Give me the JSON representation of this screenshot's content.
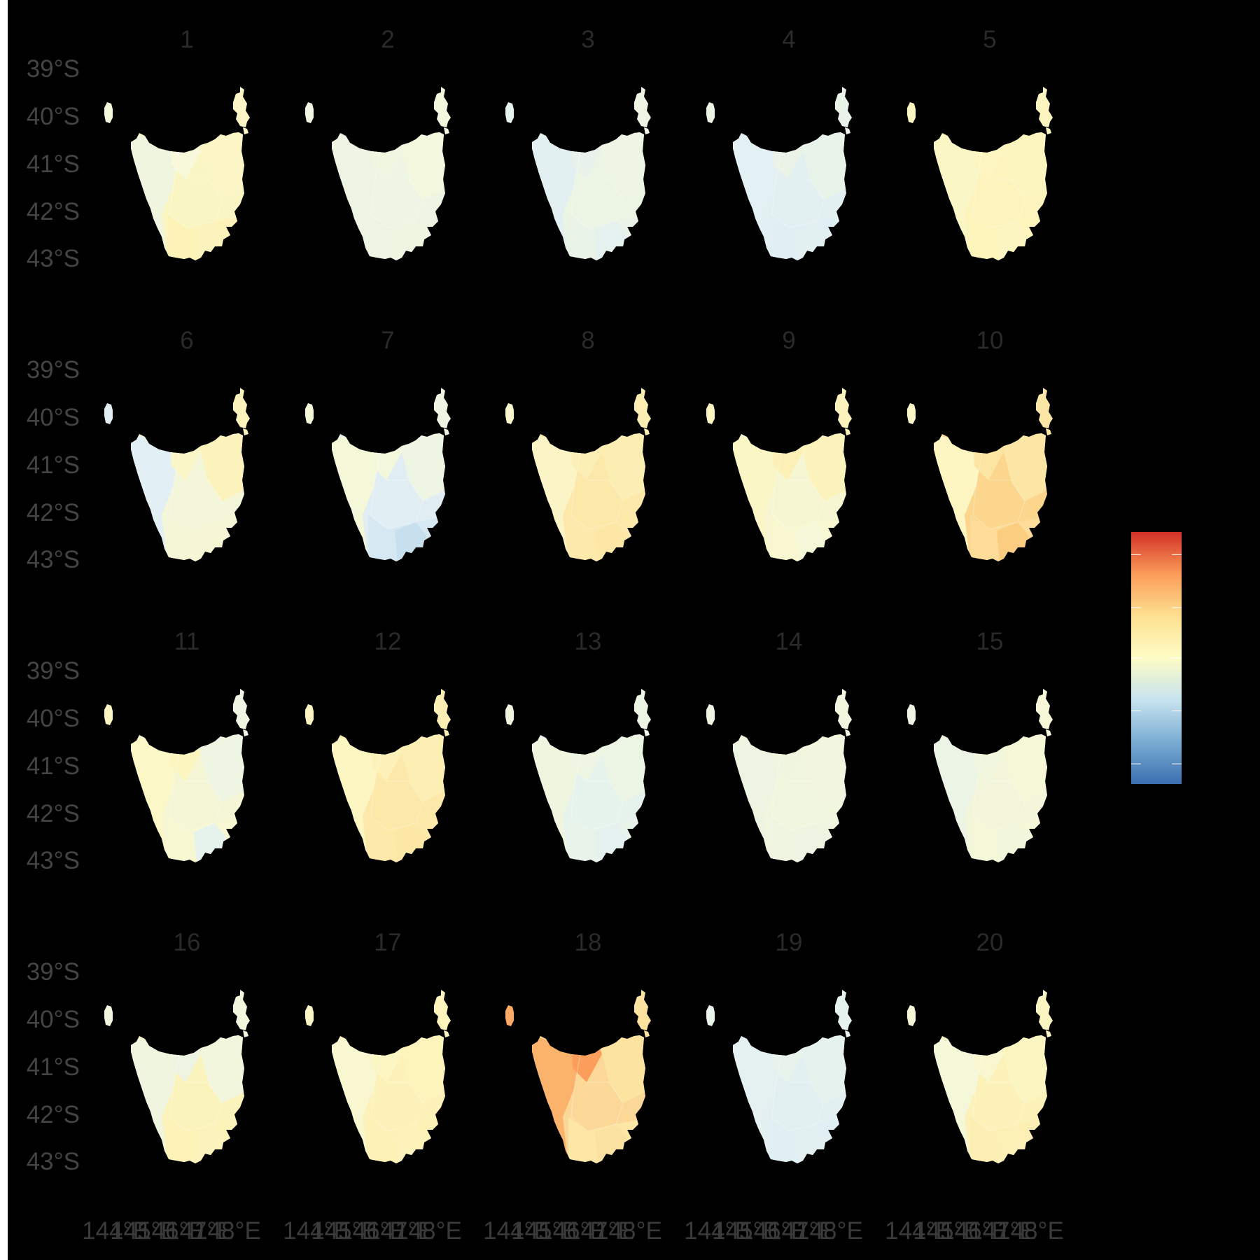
{
  "facets": [
    {
      "label": "1",
      "w": "#f0f5e0",
      "n": "#f8f9da",
      "c": "#faf6c4",
      "s": "#fdf2b8",
      "e": "#fcf6c6",
      "k": "#fbf2bc",
      "l": "#f4f7dc"
    },
    {
      "label": "2",
      "w": "#eef4e4",
      "n": "#f1f6e0",
      "c": "#eef5e4",
      "s": "#eef4e2",
      "e": "#f3f7de",
      "k": "#f0f5e1",
      "l": "#f0f5e4"
    },
    {
      "label": "3",
      "w": "#e2f0f2",
      "n": "#e8f2ea",
      "c": "#ecf4e4",
      "s": "#eaf3e8",
      "e": "#eef5e4",
      "k": "#e4f1ef",
      "l": "#e6f2ee"
    },
    {
      "label": "4",
      "w": "#e4f1f4",
      "n": "#eaf3e6",
      "c": "#e2f0f2",
      "s": "#e0eff4",
      "e": "#e8f3ea",
      "k": "#e2f0f2",
      "l": "#ecf4e6"
    },
    {
      "label": "5",
      "w": "#fbf6c6",
      "n": "#fdf6c2",
      "c": "#fcf4bc",
      "s": "#fdf4bc",
      "e": "#fdf5c0",
      "k": "#fcf5c2",
      "l": "#fcf6c2"
    },
    {
      "label": "6",
      "w": "#e2eff4",
      "n": "#fbf6c8",
      "c": "#f3f6d8",
      "s": "#f4f6d6",
      "e": "#fcf3bc",
      "k": "#f6f6d4",
      "l": "#e0eef4"
    },
    {
      "label": "7",
      "w": "#f4f7d8",
      "n": "#f3f7dc",
      "c": "#e0eef4",
      "s": "#d6e8f2",
      "e": "#eef5e2",
      "k": "#c8e0ee",
      "l": "#f4f7d8"
    },
    {
      "label": "8",
      "w": "#fbf4c6",
      "n": "#fcefb6",
      "c": "#fce8a8",
      "s": "#fde9ac",
      "e": "#fcedb2",
      "k": "#fde7a6",
      "l": "#f8f6cc"
    },
    {
      "label": "9",
      "w": "#fbf6c6",
      "n": "#fcf0b6",
      "c": "#f6f7d2",
      "s": "#f8f7d0",
      "e": "#fcf3bc",
      "k": "#f4f7d8",
      "l": "#fcf5c2"
    },
    {
      "label": "10",
      "w": "#fdf6c2",
      "n": "#fce5a2",
      "c": "#fbd68c",
      "s": "#fcdc98",
      "e": "#fce6a6",
      "k": "#fbcd80",
      "l": "#fbf6c8"
    },
    {
      "label": "11",
      "w": "#fcf7c6",
      "n": "#fcf5c0",
      "c": "#f4f6d6",
      "s": "#f7f7d2",
      "e": "#eef5e2",
      "k": "#e6f2ec",
      "l": "#fcf6c2"
    },
    {
      "label": "12",
      "w": "#fcf6c2",
      "n": "#fcf1b8",
      "c": "#fce8a8",
      "s": "#fde9aa",
      "e": "#fdeeb4",
      "k": "#fde7a6",
      "l": "#fcf4c0"
    },
    {
      "label": "13",
      "w": "#f0f5e0",
      "n": "#eef5e2",
      "c": "#e6f2ec",
      "s": "#e8f3ea",
      "e": "#ecf4e4",
      "k": "#e4f1ef",
      "l": "#f0f5e0"
    },
    {
      "label": "14",
      "w": "#eef4e2",
      "n": "#f0f5e0",
      "c": "#f1f6df",
      "s": "#eff5e0",
      "e": "#f2f6de",
      "k": "#eef4e2",
      "l": "#eef4e2"
    },
    {
      "label": "15",
      "w": "#ecf4e6",
      "n": "#f1f6de",
      "c": "#f3f6da",
      "s": "#f4f7d8",
      "e": "#f6f7d6",
      "k": "#f2f6dc",
      "l": "#eef4e4"
    },
    {
      "label": "16",
      "w": "#f0f5e0",
      "n": "#eef4e2",
      "c": "#fbf3bc",
      "s": "#fdf2b8",
      "e": "#f1f6dc",
      "k": "#fcf3bc",
      "l": "#f2f6de"
    },
    {
      "label": "17",
      "w": "#f8f7d0",
      "n": "#fcf6c2",
      "c": "#fcf1b8",
      "s": "#fdf1b6",
      "e": "#fdf4bc",
      "k": "#fcf2ba",
      "l": "#fbf6c6"
    },
    {
      "label": "18",
      "w": "#fbb36c",
      "n": "#fb9e5c",
      "c": "#fcd898",
      "s": "#fde7a6",
      "e": "#fde3a0",
      "k": "#fbe2a2",
      "l": "#fbab66"
    },
    {
      "label": "19",
      "w": "#e4f1f0",
      "n": "#e8f3ec",
      "c": "#e2f0f2",
      "s": "#e0eff4",
      "e": "#e6f2ee",
      "k": "#e2f0f2",
      "l": "#eaf4ea"
    },
    {
      "label": "20",
      "w": "#f4f7d8",
      "n": "#f8f7d0",
      "c": "#fcf1b8",
      "s": "#fdefb4",
      "e": "#fbf5c2",
      "k": "#fdf0b6",
      "l": "#f6f7d6"
    }
  ],
  "y_axis_labels": [
    "39°S",
    "40°S",
    "41°S",
    "42°S",
    "43°S"
  ],
  "x_axis_labels": [
    "144°E",
    "145°E",
    "146°E",
    "147°E",
    "148°E"
  ],
  "legend": {
    "colors": [
      "#3b6fb0",
      "#7aadd3",
      "#c7e3ef",
      "#fdfcc6",
      "#fde08f",
      "#fb9c59",
      "#d33027"
    ]
  }
}
